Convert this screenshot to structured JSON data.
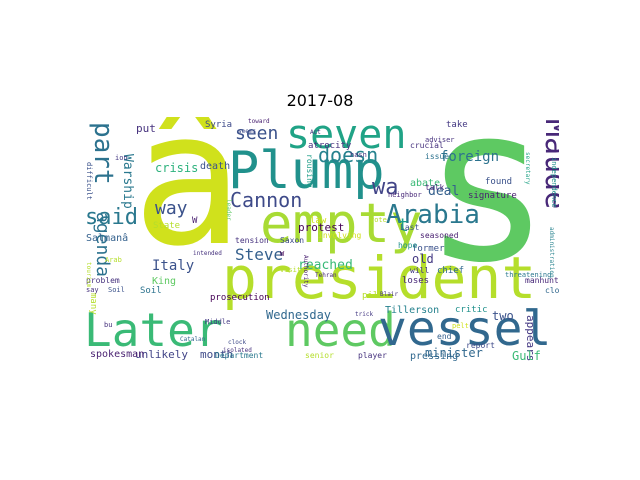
{
  "figure": {
    "title": "2017-08"
  },
  "words": [
    {
      "id": "a-circ",
      "text": "â",
      "color": "#d0e11c"
    },
    {
      "id": "s",
      "text": "s",
      "color": "#5ec962"
    },
    {
      "id": "president",
      "text": "president",
      "color": "#b5de2b"
    },
    {
      "id": "empty",
      "text": "empty",
      "color": "#a8db34"
    },
    {
      "id": "plump",
      "text": "Plump",
      "color": "#21918c"
    },
    {
      "id": "later",
      "text": "Later",
      "color": "#3aba76"
    },
    {
      "id": "need",
      "text": "need",
      "color": "#5ec962"
    },
    {
      "id": "vessel",
      "text": "vessel",
      "color": "#31688e"
    },
    {
      "id": "seven",
      "text": "seven",
      "color": "#20a386"
    },
    {
      "id": "maude",
      "text": "Maude",
      "color": "#482878"
    },
    {
      "id": "arabia",
      "text": "Arabia",
      "color": "#2a788e"
    },
    {
      "id": "cannon",
      "text": "Cannon",
      "color": "#3e4a89"
    },
    {
      "id": "part",
      "text": "part",
      "color": "#2c728e"
    },
    {
      "id": "said",
      "text": "said",
      "color": "#2a788e"
    },
    {
      "id": "doesn",
      "text": "doesn",
      "color": "#26828e"
    },
    {
      "id": "seen",
      "text": "seen",
      "color": "#3b528b"
    },
    {
      "id": "wa",
      "text": "wa",
      "color": "#414487"
    },
    {
      "id": "t",
      "text": "t",
      "color": "#1f9e89"
    },
    {
      "id": "way",
      "text": "way",
      "color": "#3b528b"
    },
    {
      "id": "agenda",
      "text": "agenda",
      "color": "#2c728e"
    },
    {
      "id": "steve",
      "text": "Steve",
      "color": "#35608d"
    },
    {
      "id": "foreign",
      "text": "foreign",
      "color": "#2c728e"
    },
    {
      "id": "deal",
      "text": "deal",
      "color": "#35608d"
    },
    {
      "id": "reached",
      "text": "reached",
      "color": "#38b977"
    },
    {
      "id": "italy",
      "text": "Italy",
      "color": "#3b528b"
    },
    {
      "id": "salmana",
      "text": "Salmanâ",
      "color": "#34618d"
    },
    {
      "id": "warship",
      "text": "Warship",
      "color": "#2a788e"
    },
    {
      "id": "wednesday",
      "text": "Wednesday",
      "color": "#31688e"
    },
    {
      "id": "minister",
      "text": "minister",
      "color": "#31688e"
    },
    {
      "id": "appears",
      "text": "appears",
      "color": "#443983"
    },
    {
      "id": "gulf",
      "text": "Gulf",
      "color": "#3aba76"
    },
    {
      "id": "two",
      "text": "two",
      "color": "#3b528b"
    },
    {
      "id": "old",
      "text": "old",
      "color": "#443983"
    },
    {
      "id": "month",
      "text": "month",
      "color": "#3e4a89"
    },
    {
      "id": "unlikely",
      "text": "unlikely",
      "color": "#414487"
    },
    {
      "id": "protest",
      "text": "protest",
      "color": "#440154"
    },
    {
      "id": "crisis",
      "text": "crisis",
      "color": "#2db27d"
    },
    {
      "id": "put",
      "text": "put",
      "color": "#46327e"
    },
    {
      "id": "tillerson",
      "text": "Tillerson",
      "color": "#26828e"
    },
    {
      "id": "critic",
      "text": "critic",
      "color": "#21918c"
    },
    {
      "id": "signature",
      "text": "signature",
      "color": "#481f70"
    },
    {
      "id": "spokesman",
      "text": "spokesman",
      "color": "#481f70"
    },
    {
      "id": "prosecution",
      "text": "prosecution",
      "color": "#440154"
    },
    {
      "id": "king",
      "text": "King",
      "color": "#5ec962"
    },
    {
      "id": "pressing",
      "text": "pressing",
      "color": "#31688e"
    },
    {
      "id": "player",
      "text": "player",
      "color": "#46327e"
    },
    {
      "id": "department",
      "text": "Department",
      "color": "#2a788e"
    },
    {
      "id": "senior",
      "text": "senior",
      "color": "#b5de2b"
    },
    {
      "id": "problem",
      "text": "problem",
      "color": "#46327e"
    },
    {
      "id": "say",
      "text": "say",
      "color": "#46327e"
    },
    {
      "id": "soil-1",
      "text": "Soil",
      "color": "#3b528b"
    },
    {
      "id": "soil-2",
      "text": "Soil",
      "color": "#2c728e"
    },
    {
      "id": "death",
      "text": "death",
      "color": "#3b528b"
    },
    {
      "id": "syria",
      "text": "Syria",
      "color": "#3e4a89"
    },
    {
      "id": "abate",
      "text": "abate",
      "color": "#3aba76"
    },
    {
      "id": "crucial",
      "text": "crucial",
      "color": "#46327e"
    },
    {
      "id": "take",
      "text": "take",
      "color": "#443983"
    },
    {
      "id": "found",
      "text": "found",
      "color": "#3b528b"
    },
    {
      "id": "report",
      "text": "report",
      "color": "#3e4a89"
    },
    {
      "id": "end",
      "text": "end",
      "color": "#35608d"
    },
    {
      "id": "close",
      "text": "close",
      "color": "#31688e"
    },
    {
      "id": "manhunt",
      "text": "manhunt",
      "color": "#482878"
    },
    {
      "id": "threatening",
      "text": "threatening",
      "color": "#2a788e"
    },
    {
      "id": "chief",
      "text": "chief",
      "color": "#31688e"
    },
    {
      "id": "will",
      "text": "will",
      "color": "#443983"
    },
    {
      "id": "loses",
      "text": "loses",
      "color": "#482878"
    },
    {
      "id": "former",
      "text": "former",
      "color": "#3b528b"
    },
    {
      "id": "talk",
      "text": "talk",
      "color": "#482878"
    },
    {
      "id": "issue",
      "text": "issue",
      "color": "#2c728e"
    },
    {
      "id": "adviser",
      "text": "adviser",
      "color": "#46327e"
    },
    {
      "id": "seasoned",
      "text": "seasoned",
      "color": "#481f70"
    },
    {
      "id": "hope",
      "text": "hope",
      "color": "#21918c"
    },
    {
      "id": "last",
      "text": "Last",
      "color": "#3b528b"
    },
    {
      "id": "tension",
      "text": "tension",
      "color": "#46327e"
    },
    {
      "id": "saxon",
      "text": "Saxon",
      "color": "#3e4a89"
    },
    {
      "id": "pile",
      "text": "pile",
      "color": "#b5de2b"
    },
    {
      "id": "involving",
      "text": "involving",
      "color": "#d0e11c"
    },
    {
      "id": "rousing",
      "text": "rousing",
      "color": "#1f9e89"
    },
    {
      "id": "atrocity",
      "text": "atrocity",
      "color": "#46327e"
    },
    {
      "id": "toward",
      "text": "toward",
      "color": "#481f70"
    },
    {
      "id": "seems",
      "text": "seems",
      "color": "#3e4a89"
    },
    {
      "id": "act",
      "text": "Act",
      "color": "#46327e"
    },
    {
      "id": "neighbor",
      "text": "neighbor",
      "color": "#482878"
    },
    {
      "id": "state",
      "text": "State",
      "color": "#b5de2b"
    },
    {
      "id": "middle",
      "text": "Middle",
      "color": "#443983"
    },
    {
      "id": "clock",
      "text": "clock",
      "color": "#3e4a89"
    },
    {
      "id": "isolated",
      "text": "isolated",
      "color": "#46327e"
    },
    {
      "id": "tehran",
      "text": "Tehran",
      "color": "#482878"
    },
    {
      "id": "catalan",
      "text": "Catalan",
      "color": "#31688e"
    },
    {
      "id": "trick",
      "text": "trick",
      "color": "#443983"
    },
    {
      "id": "blair",
      "text": "Blair",
      "color": "#46327e"
    },
    {
      "id": "intended",
      "text": "intended",
      "color": "#46327e"
    },
    {
      "id": "authority",
      "text": "Authority",
      "color": "#481f70"
    },
    {
      "id": "many",
      "text": "many",
      "color": "#b5de2b"
    },
    {
      "id": "difficult",
      "text": "difficult",
      "color": "#3b528b"
    },
    {
      "id": "independence",
      "text": "independence",
      "color": "#21918c"
    },
    {
      "id": "administration",
      "text": "administration",
      "color": "#26828e"
    },
    {
      "id": "leader",
      "text": "leader",
      "color": "#5ec962"
    },
    {
      "id": "tourism",
      "text": "tourism",
      "color": "#b5de2b"
    },
    {
      "id": "ion",
      "text": "ion",
      "color": "#443983"
    },
    {
      "id": "law",
      "text": "law",
      "color": "#d0e11c"
    },
    {
      "id": "arab",
      "text": "Arab",
      "color": "#b5de2b"
    },
    {
      "id": "w-1",
      "text": "W",
      "color": "#481f70"
    },
    {
      "id": "w-2",
      "text": "W",
      "color": "#440154"
    },
    {
      "id": "hasn",
      "text": "hasn",
      "color": "#46327e"
    },
    {
      "id": "bu",
      "text": "bu",
      "color": "#46327e"
    },
    {
      "id": "vote",
      "text": "vote",
      "color": "#b5de2b"
    },
    {
      "id": "secretary",
      "text": "secretary",
      "color": "#20a386"
    },
    {
      "id": "visit",
      "text": "visit",
      "color": "#b5de2b"
    },
    {
      "id": "pelt",
      "text": "pelt",
      "color": "#d0e11c"
    }
  ]
}
